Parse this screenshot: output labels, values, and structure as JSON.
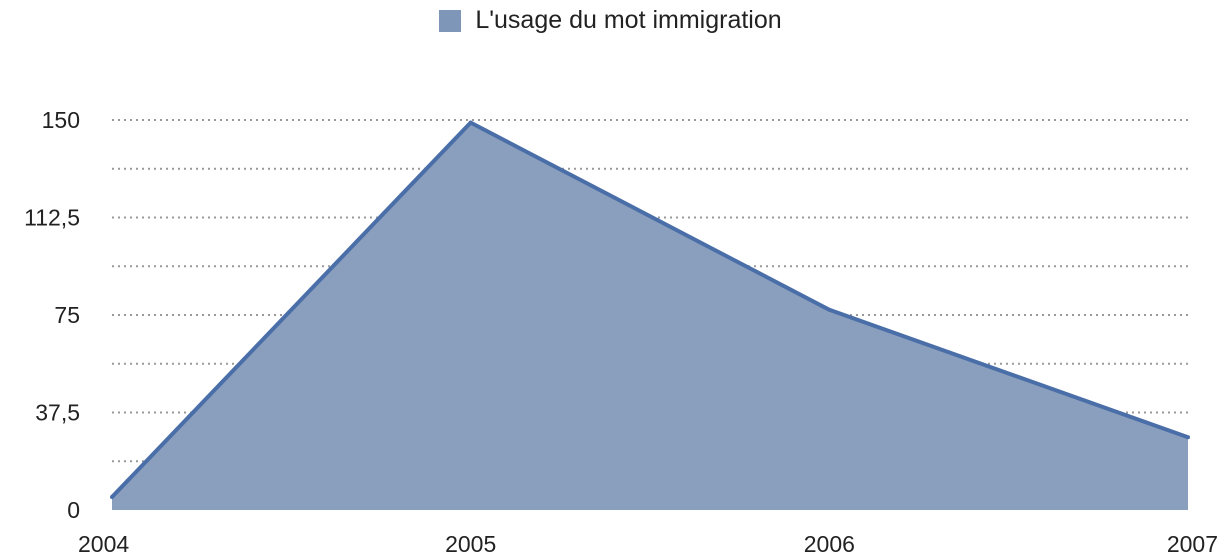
{
  "chart_data": {
    "type": "area",
    "categories": [
      "2004",
      "2005",
      "2006",
      "2007"
    ],
    "series": [
      {
        "name": "L'usage du mot immigration",
        "values": [
          5,
          149,
          77,
          28
        ]
      }
    ],
    "ylim": [
      0,
      150
    ],
    "y_ticks": [
      "0",
      "37,5",
      "75",
      "112,5",
      "150"
    ],
    "minor_gridlines": true,
    "grid": true,
    "legend_position": "top-center",
    "colors": {
      "fill": "#8a9fbd",
      "line": "#4a6ea8",
      "grid": "#999999",
      "swatch": "#7e96b8"
    }
  }
}
